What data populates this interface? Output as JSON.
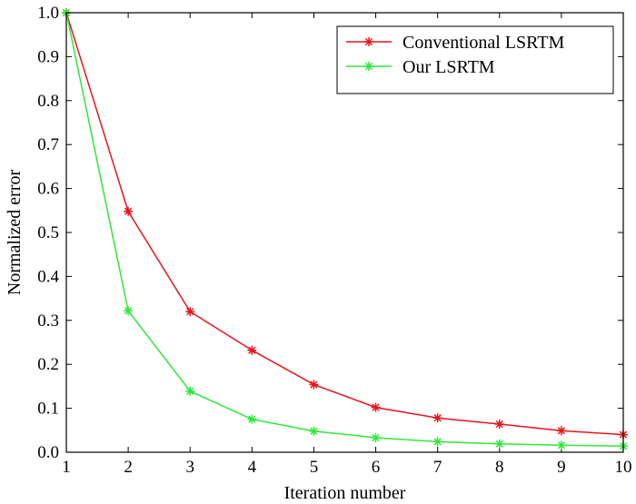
{
  "chart_data": {
    "type": "line",
    "xlabel": "Iteration number",
    "ylabel": "Normalized error",
    "xlim": [
      1,
      10
    ],
    "ylim": [
      0,
      1
    ],
    "x_ticks": [
      "1",
      "2",
      "3",
      "4",
      "5",
      "6",
      "7",
      "8",
      "9",
      "10"
    ],
    "y_ticks": [
      "0.0",
      "0.1",
      "0.2",
      "0.3",
      "0.4",
      "0.5",
      "0.6",
      "0.7",
      "0.8",
      "0.9",
      "1.0"
    ],
    "grid": false,
    "legend_position": "top-right",
    "x": [
      1,
      2,
      3,
      4,
      5,
      6,
      7,
      8,
      9,
      10
    ],
    "series": [
      {
        "name": "Conventional LSRTM",
        "color": "#e8141b",
        "marker": "asterisk",
        "values": [
          1.0,
          0.548,
          0.32,
          0.232,
          0.154,
          0.102,
          0.078,
          0.064,
          0.049,
          0.04
        ]
      },
      {
        "name": "Our LSRTM",
        "color": "#2ee83a",
        "marker": "asterisk",
        "values": [
          1.0,
          0.322,
          0.139,
          0.075,
          0.048,
          0.033,
          0.024,
          0.019,
          0.016,
          0.014
        ]
      }
    ]
  }
}
